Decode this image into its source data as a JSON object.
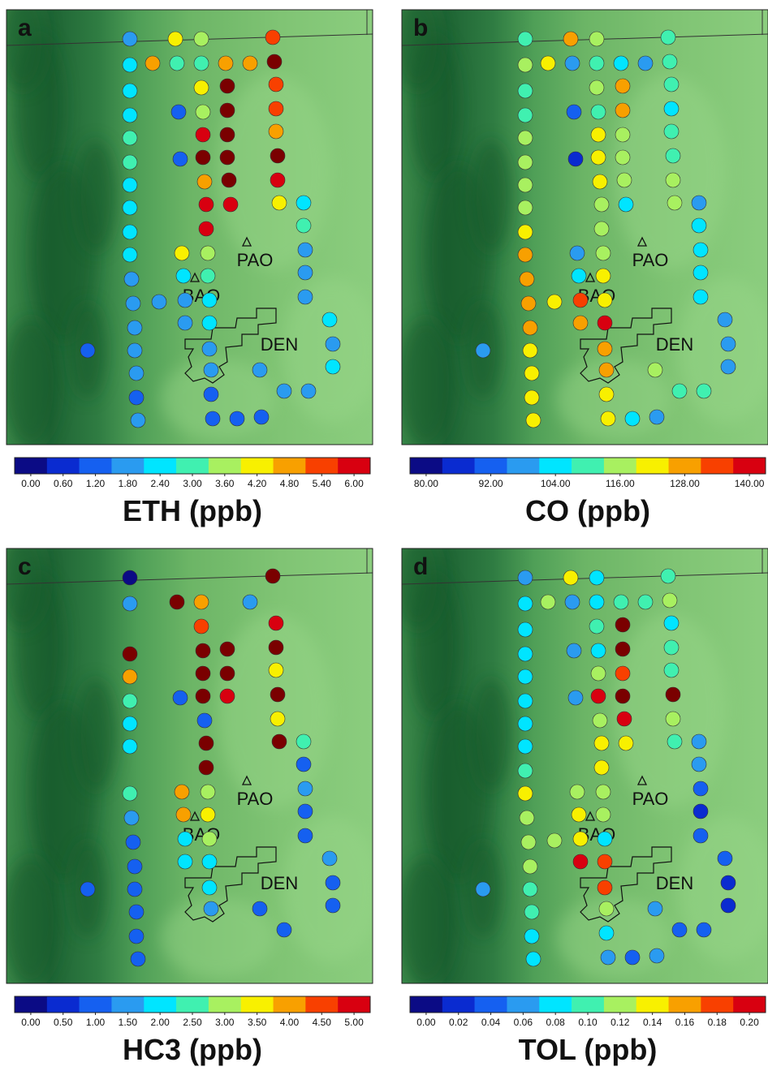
{
  "chart_data": [
    {
      "type": "scatter",
      "letter": "a",
      "title": "ETH (ppb)",
      "annotations": [
        "PAO",
        "BAO",
        "DEN"
      ],
      "colors": [
        "#0b0b85",
        "#0a2bd0",
        "#1560f0",
        "#2a9bf0",
        "#00e5ff",
        "#40f0b0",
        "#a8f060",
        "#f8f000",
        "#f8a000",
        "#f84000",
        "#d80010"
      ],
      "over_color": "#7a0000",
      "clim": [
        0,
        6
      ],
      "ticks": [
        {
          "value": 0,
          "label": "0.00"
        },
        {
          "value": 0.6,
          "label": "0.60"
        },
        {
          "value": 1.2,
          "label": "1.20"
        },
        {
          "value": 1.8,
          "label": "1.80"
        },
        {
          "value": 2.4,
          "label": "2.40"
        },
        {
          "value": 3,
          "label": "3.00"
        },
        {
          "value": 3.6,
          "label": "3.60"
        },
        {
          "value": 4.2,
          "label": "4.20"
        },
        {
          "value": 4.8,
          "label": "4.80"
        },
        {
          "value": 5.4,
          "label": "5.40"
        },
        {
          "value": 6,
          "label": "6.00"
        }
      ],
      "values": [
        1.8,
        4.2,
        3.6,
        5.4,
        2.4,
        4.8,
        3.0,
        3.0,
        4.8,
        4.8,
        7,
        2.4,
        4.2,
        7,
        5.4,
        2.4,
        1.2,
        3.6,
        7,
        5.4,
        3.0,
        6.0,
        7,
        4.8,
        3.0,
        1.2,
        7,
        7,
        7,
        2.4,
        4.8,
        7,
        6.0,
        2.4,
        6.0,
        6.0,
        4.2,
        2.4,
        2.4,
        6.0,
        3.0,
        2.4,
        4.2,
        3.6,
        1.8,
        1.8,
        2.4,
        3.0,
        1.8,
        1.8,
        1.8,
        1.8,
        2.4,
        1.8,
        1.8,
        1.8,
        2.4,
        2.4,
        1.2,
        1.8,
        1.8,
        1.8,
        1.8,
        1.8,
        1.8,
        2.4,
        1.2,
        1.2,
        1.8,
        1.8,
        1.8,
        1.2,
        1.2,
        1.2
      ]
    },
    {
      "type": "scatter",
      "letter": "b",
      "title": "CO (ppb)",
      "annotations": [
        "PAO",
        "BAO",
        "DEN"
      ],
      "colors": [
        "#0b0b85",
        "#0a2bd0",
        "#1560f0",
        "#2a9bf0",
        "#00e5ff",
        "#40f0b0",
        "#a8f060",
        "#f8f000",
        "#f8a000",
        "#f84000",
        "#d80010"
      ],
      "over_color": "#7a0000",
      "clim": [
        80,
        140
      ],
      "ticks": [
        {
          "value": 80,
          "label": "80.00"
        },
        {
          "value": 92,
          "label": "92.00"
        },
        {
          "value": 104,
          "label": "104.00"
        },
        {
          "value": 116,
          "label": "116.00"
        },
        {
          "value": 128,
          "label": "128.00"
        },
        {
          "value": 140,
          "label": "140.00"
        }
      ],
      "values": [
        110,
        128,
        116,
        110,
        116,
        122,
        98,
        110,
        104,
        98,
        110,
        110,
        116,
        128,
        110,
        110,
        92,
        110,
        128,
        104,
        116,
        122,
        116,
        110,
        116,
        86,
        122,
        116,
        110,
        116,
        122,
        116,
        116,
        116,
        116,
        104,
        116,
        98,
        122,
        116,
        104,
        128,
        98,
        116,
        104,
        128,
        104,
        122,
        104,
        128,
        122,
        134,
        122,
        104,
        128,
        128,
        140,
        98,
        98,
        122,
        128,
        98,
        122,
        128,
        116,
        98,
        122,
        122,
        110,
        110,
        122,
        122,
        104,
        98
      ]
    },
    {
      "type": "scatter",
      "letter": "c",
      "title": "HC3 (ppb)",
      "annotations": [
        "PAO",
        "BAO",
        "DEN"
      ],
      "colors": [
        "#0b0b85",
        "#0a2bd0",
        "#1560f0",
        "#2a9bf0",
        "#00e5ff",
        "#40f0b0",
        "#a8f060",
        "#f8f000",
        "#f8a000",
        "#f84000",
        "#d80010"
      ],
      "over_color": "#7a0000",
      "clim": [
        0,
        5
      ],
      "ticks": [
        {
          "value": 0,
          "label": "0.00"
        },
        {
          "value": 0.5,
          "label": "0.50"
        },
        {
          "value": 1,
          "label": "1.00"
        },
        {
          "value": 1.5,
          "label": "1.50"
        },
        {
          "value": 2,
          "label": "2.00"
        },
        {
          "value": 2.5,
          "label": "2.50"
        },
        {
          "value": 3,
          "label": "3.00"
        },
        {
          "value": 3.5,
          "label": "3.50"
        },
        {
          "value": 4,
          "label": "4.00"
        },
        {
          "value": 4.5,
          "label": "4.50"
        },
        {
          "value": 5,
          "label": "5.00"
        }
      ],
      "values": [
        0.0,
        null,
        null,
        7,
        1.5,
        null,
        7,
        4.0,
        null,
        1.5,
        null,
        null,
        4.5,
        null,
        5.0,
        7,
        null,
        7,
        7,
        7,
        4.0,
        7,
        7,
        3.5,
        2.5,
        1.0,
        7,
        5.0,
        7,
        2.0,
        1.0,
        null,
        3.5,
        2.0,
        7,
        null,
        7,
        2.5,
        null,
        7,
        1.0,
        2.5,
        4.0,
        3.0,
        1.5,
        1.5,
        4.0,
        3.5,
        1.0,
        1.0,
        null,
        2.0,
        3.0,
        1.0,
        1.0,
        2.0,
        2.0,
        1.5,
        1.0,
        1.0,
        2.0,
        1.0,
        1.0,
        1.5,
        1.0,
        1.0,
        1.0,
        null,
        1.0,
        null,
        1.0,
        null,
        null,
        null
      ]
    },
    {
      "type": "scatter",
      "letter": "d",
      "title": "TOL (ppb)",
      "annotations": [
        "PAO",
        "BAO",
        "DEN"
      ],
      "colors": [
        "#0b0b85",
        "#0a2bd0",
        "#1560f0",
        "#2a9bf0",
        "#00e5ff",
        "#40f0b0",
        "#a8f060",
        "#f8f000",
        "#f8a000",
        "#f84000",
        "#d80010"
      ],
      "over_color": "#7a0000",
      "clim": [
        0,
        0.2
      ],
      "ticks": [
        {
          "value": 0,
          "label": "0.00"
        },
        {
          "value": 0.02,
          "label": "0.02"
        },
        {
          "value": 0.04,
          "label": "0.04"
        },
        {
          "value": 0.06,
          "label": "0.06"
        },
        {
          "value": 0.08,
          "label": "0.08"
        },
        {
          "value": 0.1,
          "label": "0.10"
        },
        {
          "value": 0.12,
          "label": "0.12"
        },
        {
          "value": 0.14,
          "label": "0.14"
        },
        {
          "value": 0.16,
          "label": "0.16"
        },
        {
          "value": 0.18,
          "label": "0.18"
        },
        {
          "value": 0.2,
          "label": "0.20"
        }
      ],
      "values": [
        0.06,
        0.14,
        0.08,
        0.1,
        0.08,
        0.12,
        0.06,
        0.08,
        0.1,
        0.1,
        0.12,
        0.08,
        0.1,
        0.22,
        0.08,
        0.08,
        0.06,
        0.08,
        0.22,
        0.1,
        0.08,
        0.12,
        0.18,
        0.1,
        0.08,
        0.06,
        0.2,
        0.22,
        0.22,
        0.08,
        0.12,
        0.2,
        0.12,
        0.08,
        0.14,
        0.14,
        0.1,
        0.06,
        0.1,
        0.14,
        0.06,
        0.14,
        0.12,
        0.12,
        0.04,
        0.12,
        0.14,
        0.12,
        0.02,
        0.12,
        0.12,
        0.14,
        0.08,
        0.04,
        0.12,
        0.2,
        0.18,
        0.04,
        0.06,
        0.1,
        0.18,
        0.02,
        0.1,
        0.12,
        0.06,
        0.02,
        0.08,
        0.08,
        0.04,
        0.04,
        0.08,
        0.06,
        0.04,
        0.06
      ]
    }
  ]
}
